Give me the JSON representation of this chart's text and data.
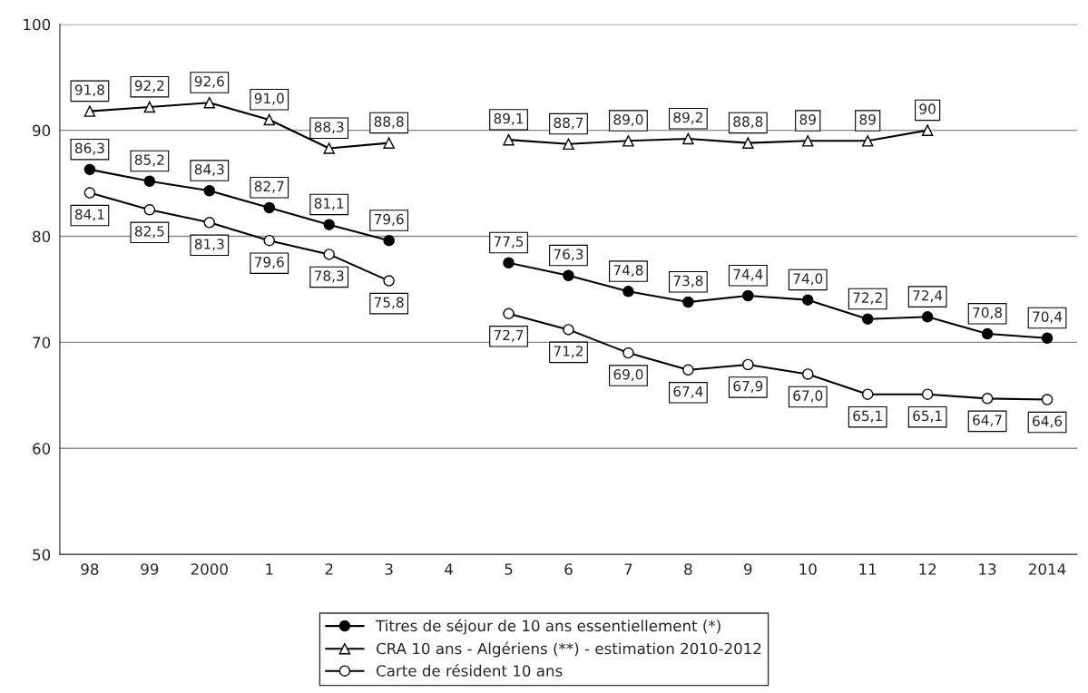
{
  "chart_data": {
    "type": "line",
    "categories": [
      "98",
      "99",
      "2000",
      "1",
      "2",
      "3",
      "4",
      "5",
      "6",
      "7",
      "8",
      "9",
      "10",
      "11",
      "12",
      "13",
      "2014"
    ],
    "series": [
      {
        "name": "Titres de séjour de 10 ans essentiellement (*)",
        "color": "#000000",
        "marker": "circle",
        "values": [
          86.3,
          85.2,
          84.3,
          82.7,
          81.1,
          79.6,
          null,
          77.5,
          76.3,
          74.8,
          73.8,
          74.4,
          74.0,
          72.2,
          72.4,
          70.8,
          70.4
        ],
        "value_labels": [
          "86,3",
          "85,2",
          "84,3",
          "82,7",
          "81,1",
          "79,6",
          null,
          "77,5",
          "76,3",
          "74,8",
          "73,8",
          "74,4",
          "74,0",
          "72,2",
          "72,4",
          "70,8",
          "70,4"
        ]
      },
      {
        "name": "CRA 10 ans - Algériens (**) - estimation 2010-2012",
        "color": "#000000",
        "marker": "triangle",
        "values": [
          91.8,
          92.2,
          92.6,
          91.0,
          88.3,
          88.8,
          null,
          89.1,
          88.7,
          89.0,
          89.2,
          88.8,
          89,
          89,
          90,
          null,
          null
        ],
        "value_labels": [
          "91,8",
          "92,2",
          "92,6",
          "91,0",
          "88,3",
          "88,8",
          null,
          "89,1",
          "88,7",
          "89,0",
          "89,2",
          "88,8",
          "89",
          "89",
          "90",
          null,
          null
        ]
      },
      {
        "name": "Carte de résident 10 ans",
        "color": "#000000",
        "marker": "circle",
        "values": [
          84.1,
          82.5,
          81.3,
          79.6,
          78.3,
          75.8,
          null,
          72.7,
          71.2,
          69.0,
          67.4,
          67.9,
          67.0,
          65.1,
          65.1,
          64.7,
          64.6
        ],
        "value_labels": [
          "84,1",
          "82,5",
          "81,3",
          "79,6",
          "78,3",
          "75,8",
          null,
          "72,7",
          "71,2",
          "69,0",
          "67,4",
          "67,9",
          "67,0",
          "65,1",
          "65,1",
          "64,7",
          "64,6"
        ]
      }
    ],
    "ylim": [
      50,
      100
    ],
    "yticks": [
      50,
      60,
      70,
      80,
      90,
      100
    ],
    "grid": "y",
    "legend": "bottom",
    "line_style": "solid"
  }
}
